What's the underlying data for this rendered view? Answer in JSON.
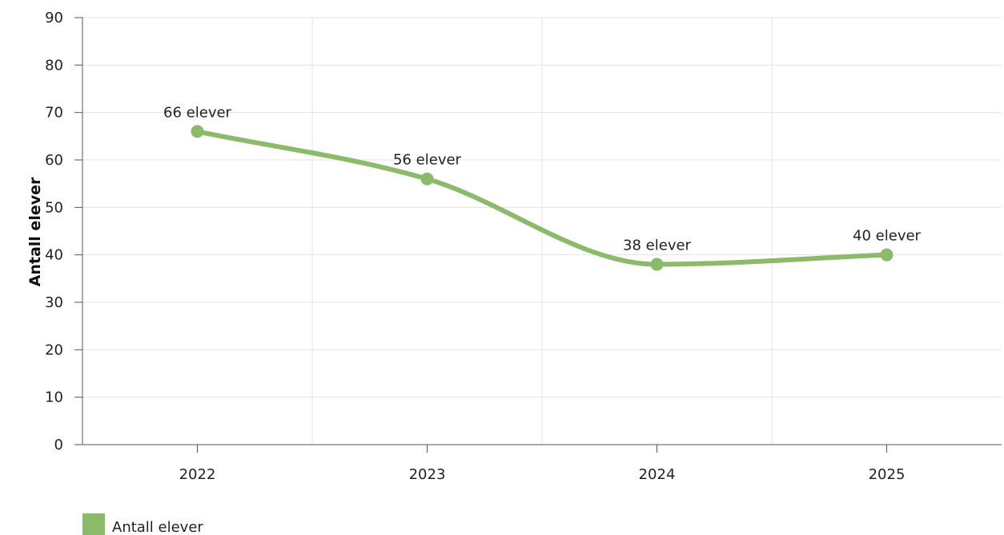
{
  "chart_data": {
    "type": "line",
    "categories": [
      "2022",
      "2023",
      "2024",
      "2025"
    ],
    "series": [
      {
        "name": "Antall elever",
        "values": [
          66,
          56,
          38,
          40
        ],
        "labels": [
          "66 elever",
          "56 elever",
          "38 elever",
          "40 elever"
        ],
        "color": "#8aba6a"
      }
    ],
    "ylabel": "Antall elever",
    "ylim": [
      0,
      90
    ],
    "yticks": [
      "0",
      "10",
      "20",
      "30",
      "40",
      "50",
      "60",
      "70",
      "80",
      "90"
    ],
    "grid": true,
    "legend": "bottom-left",
    "smooth": true
  }
}
